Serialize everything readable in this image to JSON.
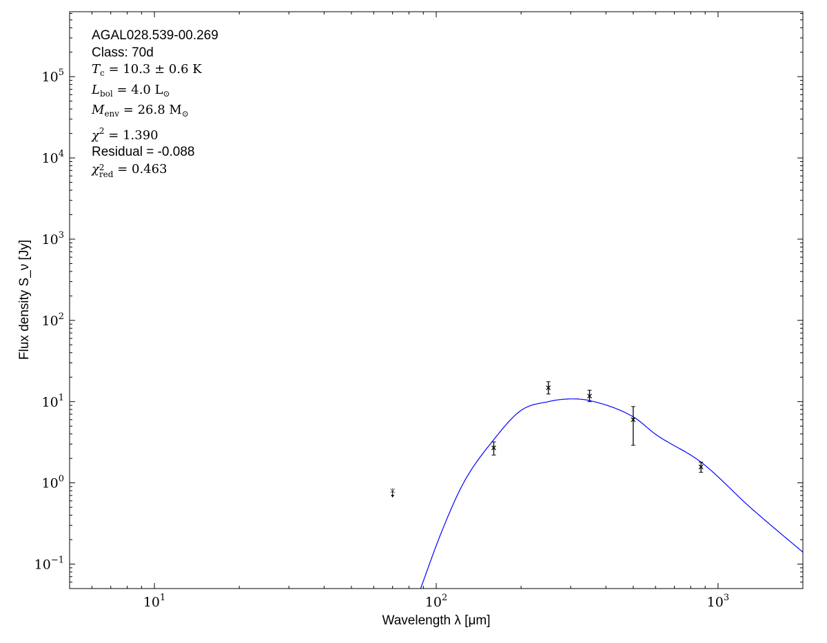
{
  "chart_data": {
    "type": "scatter",
    "title": "",
    "xlabel": "Wavelength λ [μm]",
    "ylabel": "Flux density S_ν [Jy]",
    "xscale": "log",
    "yscale": "log",
    "xlim": [
      5,
      2000
    ],
    "ylim": [
      0.05,
      630000
    ],
    "grid": false,
    "x_tick_labels": [
      {
        "base": "10",
        "exp": "1",
        "value": 10
      },
      {
        "base": "10",
        "exp": "2",
        "value": 100
      },
      {
        "base": "10",
        "exp": "3",
        "value": 1000
      }
    ],
    "y_tick_labels": [
      {
        "base": "10",
        "exp": "−1",
        "value": 0.1
      },
      {
        "base": "10",
        "exp": "0",
        "value": 1
      },
      {
        "base": "10",
        "exp": "1",
        "value": 10
      },
      {
        "base": "10",
        "exp": "2",
        "value": 100
      },
      {
        "base": "10",
        "exp": "3",
        "value": 1000
      },
      {
        "base": "10",
        "exp": "4",
        "value": 10000
      },
      {
        "base": "10",
        "exp": "5",
        "value": 100000
      }
    ],
    "upper_limits": [
      {
        "x": 70,
        "y": 0.8
      }
    ],
    "points": [
      {
        "x": 160,
        "y": 2.7,
        "ylo": 2.2,
        "yhi": 3.2
      },
      {
        "x": 250,
        "y": 14.8,
        "ylo": 12.4,
        "yhi": 17.6
      },
      {
        "x": 350,
        "y": 11.7,
        "ylo": 10.0,
        "yhi": 13.8
      },
      {
        "x": 500,
        "y": 6.0,
        "ylo": 2.9,
        "yhi": 8.7
      },
      {
        "x": 870,
        "y": 1.57,
        "ylo": 1.35,
        "yhi": 1.8
      }
    ],
    "fit_curve": {
      "color": "#0000ff",
      "x": [
        88,
        104,
        125,
        160,
        200,
        250,
        299,
        350,
        500,
        604,
        870,
        1300,
        2000
      ],
      "y": [
        0.05,
        0.24,
        1.0,
        3.4,
        7.8,
        10.0,
        10.8,
        10.3,
        6.5,
        3.9,
        1.8,
        0.5,
        0.14
      ]
    }
  },
  "annotation": {
    "source": "AGAL028.539-00.269",
    "class": "Class: 70d",
    "tc": {
      "sym": "T",
      "sub": "c",
      "value": "= 10.3 ± 0.6 K"
    },
    "lbol": {
      "sym": "L",
      "sub": "bol",
      "value": "= 4.0 L",
      "unit_sub": "⊙"
    },
    "menv": {
      "sym": "M",
      "sub": "env",
      "value": "= 26.8 M",
      "unit_sub": "⊙"
    },
    "chi2": {
      "sym": "χ",
      "sup": "2",
      "value": "= 1.390"
    },
    "residual": "Residual = -0.088",
    "chi2red": {
      "sym": "χ",
      "sup": "2",
      "sub": "red",
      "value": "= 0.463"
    }
  }
}
